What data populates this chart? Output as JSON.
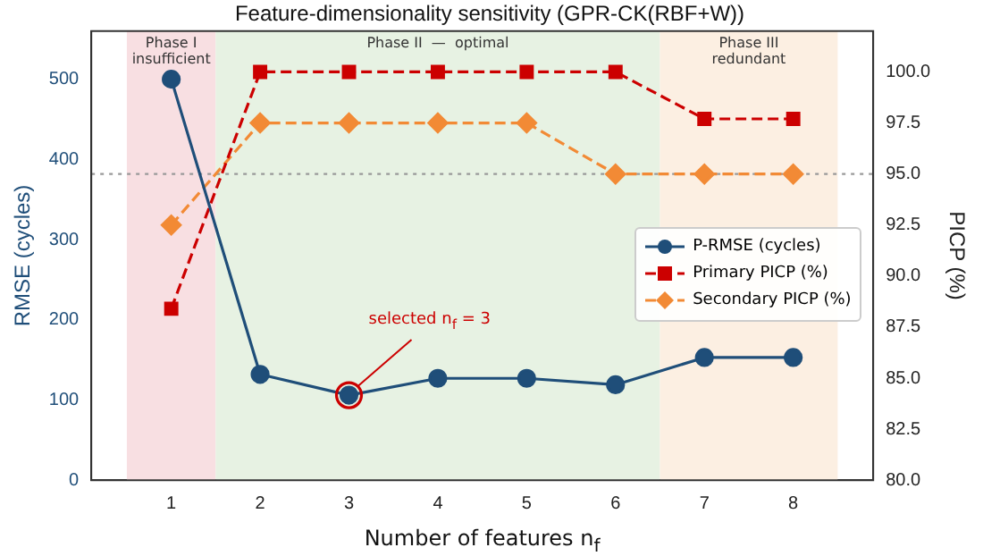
{
  "chart_data": {
    "type": "line",
    "title": "Feature-dimensionality sensitivity (GPR-CK(RBF+W))",
    "xlabel": "Number of features  n$_{f}$",
    "ylabel": "RMSE (cycles)",
    "y2label": "PICP (%)",
    "x": [
      1,
      2,
      3,
      4,
      5,
      6,
      7,
      8
    ],
    "xlim": [
      0.1,
      8.9
    ],
    "xticks": [
      1,
      2,
      3,
      4,
      5,
      6,
      7,
      8
    ],
    "ylim": [
      0,
      560
    ],
    "yticks": [
      0,
      100,
      200,
      300,
      400,
      500
    ],
    "y2lim": [
      80,
      102
    ],
    "y2ticks": [
      {
        "value": 80,
        "label": "80.0"
      },
      {
        "value": 82.5,
        "label": "82.5"
      },
      {
        "value": 85,
        "label": "85.0"
      },
      {
        "value": 87.5,
        "label": "87.5"
      },
      {
        "value": 90,
        "label": "90.0"
      },
      {
        "value": 92.5,
        "label": "92.5"
      },
      {
        "value": 95,
        "label": "95.0"
      },
      {
        "value": 97.5,
        "label": "97.5"
      },
      {
        "value": 100,
        "label": "100.0"
      }
    ],
    "series": [
      {
        "name": "P-RMSE (cycles)",
        "color": "#1f4e79",
        "marker": "circle",
        "line_style": "solid",
        "values": [
          500,
          132,
          106,
          127,
          127,
          119,
          153,
          153
        ]
      },
      {
        "name": "Primary PICP (%)",
        "color": "#cc0000",
        "marker": "square",
        "line_style": "dashed",
        "axis": "y2",
        "values": [
          88.4,
          100,
          100,
          100,
          100,
          100,
          97.7,
          97.7
        ]
      },
      {
        "name": "Secondary PICP (%)",
        "color": "#f28a35",
        "marker": "diamond",
        "line_style": "dashed",
        "axis": "y2",
        "values": [
          92.5,
          97.5,
          97.5,
          97.5,
          97.5,
          95,
          95,
          95
        ]
      }
    ],
    "bands": [
      {
        "axis": "x",
        "from": 0.5,
        "to": 1.5,
        "label": "Phase I\ninsufficient",
        "color": "#f8dfe2"
      },
      {
        "axis": "x",
        "from": 1.5,
        "to": 6.5,
        "label": "Phase II  —  optimal",
        "color": "#e7f2e3"
      },
      {
        "axis": "x",
        "from": 6.5,
        "to": 8.5,
        "label": "Phase III\nredundant",
        "color": "#fcefe2"
      }
    ],
    "ref_lines": [
      {
        "axis": "y2",
        "value": 95,
        "color": "#999999",
        "line_style": "dotted"
      }
    ],
    "annotations": [
      {
        "text": "selected  n$_{f}$ = 3",
        "x": 3,
        "y": 106
      }
    ],
    "grid": false,
    "legend": "right"
  }
}
